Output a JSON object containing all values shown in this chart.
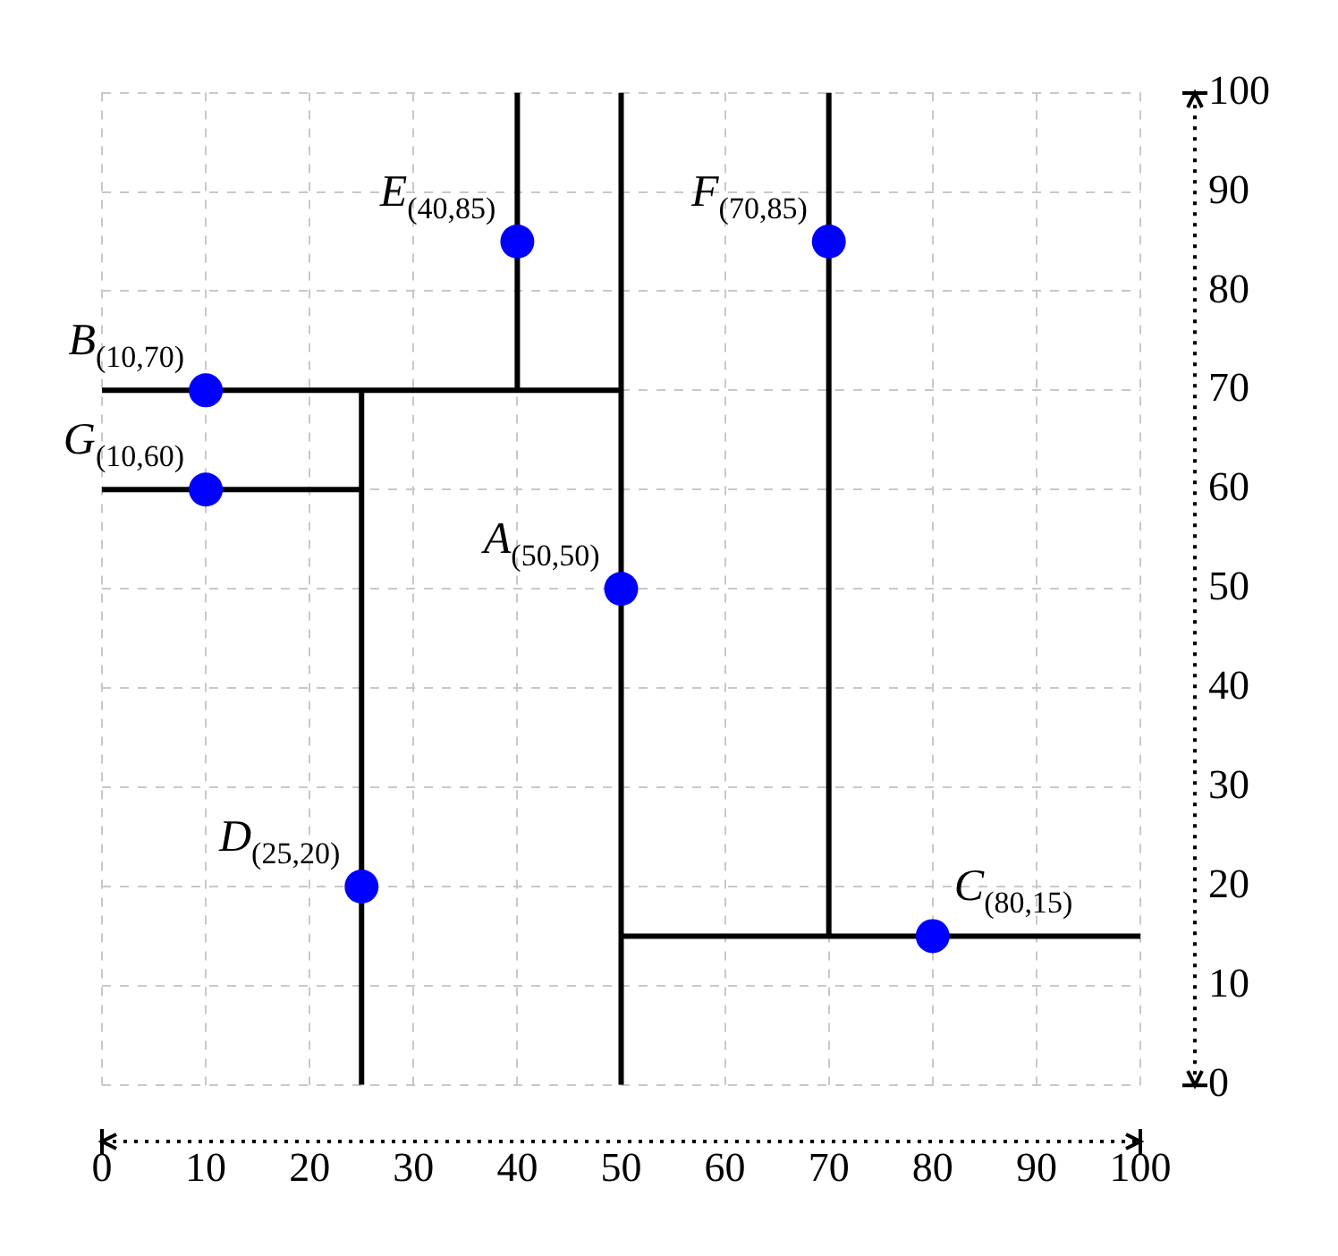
{
  "chart_data": {
    "type": "scatter",
    "xlim": [
      0,
      100
    ],
    "xticks": [
      0,
      10,
      20,
      30,
      40,
      50,
      60,
      70,
      80,
      90,
      100
    ],
    "ylim": [
      0,
      100
    ],
    "yticks": [
      0,
      10,
      20,
      30,
      40,
      50,
      60,
      70,
      80,
      90,
      100
    ],
    "grid": true,
    "legend": false,
    "marker": "circle",
    "series": [
      {
        "type": "line",
        "marker": "none",
        "color": "#000000",
        "x": [
          50,
          50
        ],
        "values": [
          0,
          100
        ]
      },
      {
        "type": "line",
        "marker": "none",
        "color": "#000000",
        "x": [
          0,
          50
        ],
        "values": [
          70,
          70
        ]
      },
      {
        "type": "line",
        "marker": "none",
        "color": "#000000",
        "x": [
          25,
          25
        ],
        "values": [
          0,
          70
        ]
      },
      {
        "type": "line",
        "marker": "none",
        "color": "#000000",
        "x": [
          0,
          25
        ],
        "values": [
          60,
          60
        ]
      },
      {
        "type": "line",
        "marker": "none",
        "color": "#000000",
        "x": [
          40,
          40
        ],
        "values": [
          70,
          100
        ]
      },
      {
        "type": "line",
        "marker": "none",
        "color": "#000000",
        "x": [
          50,
          100
        ],
        "values": [
          15,
          15
        ]
      },
      {
        "type": "line",
        "marker": "none",
        "color": "#000000",
        "x": [
          70,
          70
        ],
        "values": [
          15,
          100
        ]
      },
      {
        "type": "scatter",
        "color": "#0000ff",
        "x": [
          50,
          10,
          80,
          25,
          40,
          70,
          10
        ],
        "values": [
          50,
          70,
          15,
          20,
          85,
          85,
          60
        ]
      }
    ],
    "annotations": [
      {
        "text": "A$_{(50,50)}$",
        "x": 50,
        "y": 50
      },
      {
        "text": "B$_{(10,70)}$",
        "x": 10,
        "y": 70
      },
      {
        "text": "C$_{(80,15)}$",
        "x": 80,
        "y": 15
      },
      {
        "text": "D$_{(25,20)}$",
        "x": 25,
        "y": 20
      },
      {
        "text": "E$_{(40,85)}$",
        "x": 40,
        "y": 85
      },
      {
        "text": "F$_{(70,85)}$",
        "x": 70,
        "y": 85
      },
      {
        "text": "G$_{(10,60)}$",
        "x": 10,
        "y": 60
      }
    ]
  }
}
